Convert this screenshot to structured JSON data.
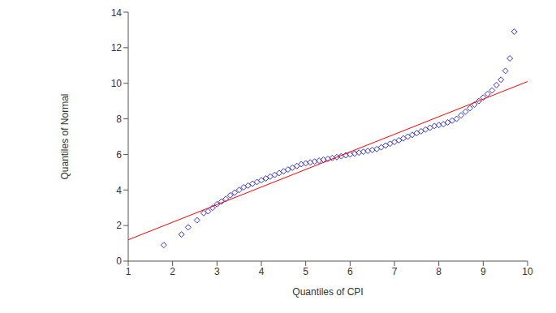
{
  "chart_data": {
    "type": "scatter",
    "x_label": "Quantiles of CPI",
    "y_label": "Quantiles of Normal",
    "xlim": [
      1,
      10
    ],
    "xticks": [
      1,
      2,
      3,
      4,
      5,
      6,
      7,
      8,
      9,
      10
    ],
    "ylim": [
      0,
      14
    ],
    "yticks": [
      0,
      2,
      4,
      6,
      8,
      10,
      12,
      14
    ],
    "grid": false,
    "series": [
      {
        "type": "scatter",
        "color": "#3333cc",
        "marker": "diamond",
        "x": [
          1.8,
          2.2,
          2.35,
          2.55,
          2.7,
          2.8,
          2.9,
          3.0,
          3.1,
          3.2,
          3.3,
          3.4,
          3.5,
          3.6,
          3.7,
          3.8,
          3.9,
          4.0,
          4.1,
          4.2,
          4.3,
          4.4,
          4.5,
          4.6,
          4.7,
          4.8,
          4.9,
          5.0,
          5.1,
          5.2,
          5.3,
          5.4,
          5.5,
          5.6,
          5.7,
          5.8,
          5.9,
          6.0,
          6.1,
          6.2,
          6.3,
          6.4,
          6.5,
          6.6,
          6.7,
          6.8,
          6.9,
          7.0,
          7.1,
          7.2,
          7.3,
          7.4,
          7.5,
          7.6,
          7.7,
          7.8,
          7.9,
          8.0,
          8.1,
          8.2,
          8.3,
          8.4,
          8.5,
          8.6,
          8.7,
          8.8,
          8.9,
          9.0,
          9.1,
          9.2,
          9.3,
          9.4,
          9.5,
          9.6,
          9.7
        ],
        "values": [
          0.9,
          1.5,
          1.9,
          2.3,
          2.7,
          2.8,
          3.0,
          3.2,
          3.35,
          3.5,
          3.7,
          3.85,
          4.0,
          4.15,
          4.25,
          4.35,
          4.45,
          4.55,
          4.65,
          4.75,
          4.85,
          4.95,
          5.05,
          5.15,
          5.25,
          5.35,
          5.45,
          5.5,
          5.55,
          5.6,
          5.65,
          5.7,
          5.75,
          5.8,
          5.85,
          5.9,
          5.95,
          6.0,
          6.05,
          6.1,
          6.15,
          6.2,
          6.25,
          6.3,
          6.4,
          6.5,
          6.6,
          6.7,
          6.8,
          6.9,
          7.0,
          7.1,
          7.2,
          7.3,
          7.4,
          7.5,
          7.6,
          7.65,
          7.7,
          7.8,
          7.9,
          8.0,
          8.2,
          8.4,
          8.6,
          8.8,
          9.0,
          9.2,
          9.4,
          9.6,
          9.9,
          10.2,
          10.7,
          11.4,
          12.9
        ]
      },
      {
        "type": "line",
        "color": "#ff0000",
        "x": [
          1,
          10
        ],
        "values": [
          1.2,
          10.1
        ]
      }
    ]
  }
}
